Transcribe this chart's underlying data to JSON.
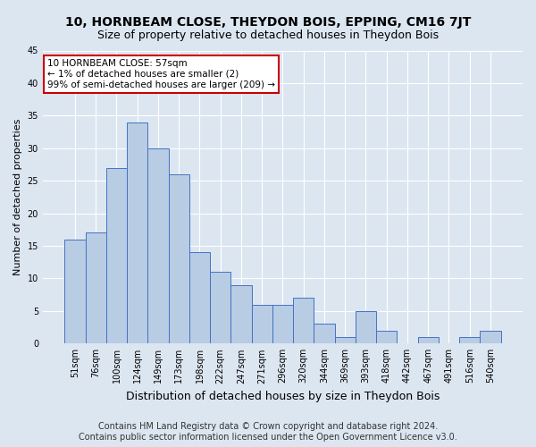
{
  "title": "10, HORNBEAM CLOSE, THEYDON BOIS, EPPING, CM16 7JT",
  "subtitle": "Size of property relative to detached houses in Theydon Bois",
  "xlabel": "Distribution of detached houses by size in Theydon Bois",
  "ylabel": "Number of detached properties",
  "categories": [
    "51sqm",
    "76sqm",
    "100sqm",
    "124sqm",
    "149sqm",
    "173sqm",
    "198sqm",
    "222sqm",
    "247sqm",
    "271sqm",
    "296sqm",
    "320sqm",
    "344sqm",
    "369sqm",
    "393sqm",
    "418sqm",
    "442sqm",
    "467sqm",
    "491sqm",
    "516sqm",
    "540sqm"
  ],
  "values": [
    16,
    17,
    27,
    34,
    30,
    26,
    14,
    11,
    9,
    6,
    6,
    7,
    3,
    1,
    5,
    2,
    0,
    1,
    0,
    1,
    2
  ],
  "bar_color": "#b8cce4",
  "bar_edge_color": "#4472c4",
  "background_color": "#dce6f1",
  "plot_bg_color": "#dce6f1",
  "annotation_text": "10 HORNBEAM CLOSE: 57sqm\n← 1% of detached houses are smaller (2)\n99% of semi-detached houses are larger (209) →",
  "annotation_box_color": "#ffffff",
  "annotation_box_edge": "#cc0000",
  "ylim": [
    0,
    45
  ],
  "yticks": [
    0,
    5,
    10,
    15,
    20,
    25,
    30,
    35,
    40,
    45
  ],
  "footer_line1": "Contains HM Land Registry data © Crown copyright and database right 2024.",
  "footer_line2": "Contains public sector information licensed under the Open Government Licence v3.0.",
  "title_fontsize": 10,
  "subtitle_fontsize": 9,
  "xlabel_fontsize": 9,
  "ylabel_fontsize": 8,
  "tick_fontsize": 7,
  "footer_fontsize": 7,
  "annotation_fontsize": 7.5
}
